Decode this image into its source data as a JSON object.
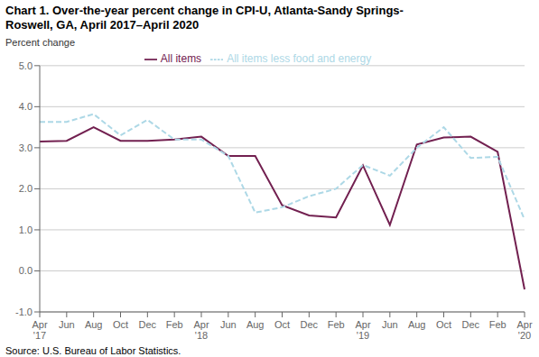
{
  "chart_data": {
    "type": "line",
    "title": "Chart 1. Over-the-year percent change in CPI-U, Atlanta-Sandy Springs-\nRoswell, GA, April 2017–April 2020",
    "ylabel": "Percent change",
    "source": "Source: U.S. Bureau of Labor Statistics.",
    "categories": [
      "Apr\n'17",
      "Jun",
      "Aug",
      "Oct",
      "Dec",
      "Feb",
      "Apr\n'18",
      "Jun",
      "Aug",
      "Oct",
      "Dec",
      "Feb",
      "Apr\n'19",
      "Jun",
      "Aug",
      "Oct",
      "Dec",
      "Feb",
      "Apr\n'20"
    ],
    "series": [
      {
        "name": "All items",
        "color": "#722050",
        "line_style": "solid",
        "values": [
          3.15,
          3.17,
          3.5,
          3.17,
          3.17,
          3.2,
          3.27,
          2.8,
          2.8,
          1.6,
          1.35,
          1.3,
          2.57,
          1.12,
          3.08,
          3.25,
          3.27,
          2.9,
          -0.45
        ]
      },
      {
        "name": "All items less food and energy",
        "color": "#ADD8E6",
        "line_style": "dashed",
        "values": [
          3.63,
          3.63,
          3.82,
          3.3,
          3.68,
          3.2,
          3.2,
          2.8,
          1.42,
          1.55,
          1.82,
          2.0,
          2.58,
          2.32,
          3.0,
          3.5,
          2.75,
          2.78,
          1.25
        ]
      }
    ],
    "ylim": [
      -1.0,
      5.0
    ],
    "yticks": [
      {
        "value": -1.0,
        "label": "-1.0"
      },
      {
        "value": 0.0,
        "label": "0.0"
      },
      {
        "value": 1.0,
        "label": "1.0"
      },
      {
        "value": 2.0,
        "label": "2.0"
      },
      {
        "value": 3.0,
        "label": "3.0"
      },
      {
        "value": 4.0,
        "label": "4.0"
      },
      {
        "value": 5.0,
        "label": "5.0"
      }
    ],
    "grid": true,
    "legend": "top"
  }
}
